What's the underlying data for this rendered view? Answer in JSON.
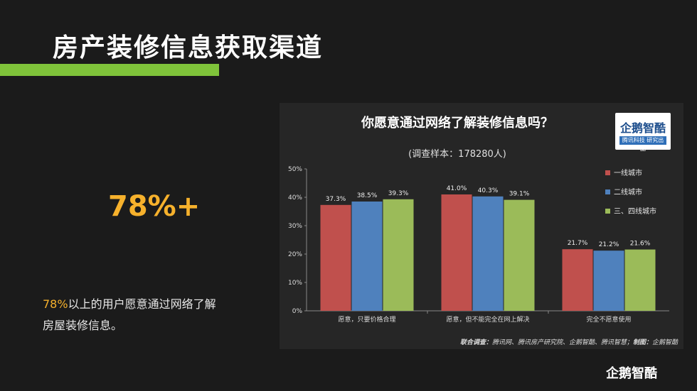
{
  "page": {
    "title": "房产装修信息获取渠道",
    "big_stat": "78%+",
    "desc_highlight": "78%",
    "desc_text": "以上的用户愿意通过网络了解房屋装修信息。",
    "footer_logo": "企鹅智酷"
  },
  "panel": {
    "logo_text": "企鹅智酷",
    "logo_sub": "腾讯科技 研究出品",
    "source_label": "联合调查：",
    "source_text": "腾讯网、腾讯房产研究院、企鹅智酷、腾讯智慧；",
    "source_label2": "制图：",
    "source_text2": "企鹅智酷"
  },
  "chart_data": {
    "type": "bar",
    "title": "你愿意通过网络了解装修信息吗？",
    "subtitle": "(调查样本：178280人)",
    "categories": [
      "愿意，只要价格合理",
      "愿意，但不能完全在网上解决",
      "完全不愿意使用"
    ],
    "series": [
      {
        "name": "一线城市",
        "color": "#c0504d",
        "values": [
          37.3,
          41.0,
          21.7
        ]
      },
      {
        "name": "二线城市",
        "color": "#4f81bd",
        "values": [
          38.5,
          40.3,
          21.2
        ]
      },
      {
        "name": "三、四线城市",
        "color": "#9bbb59",
        "values": [
          39.3,
          39.1,
          21.6
        ]
      }
    ],
    "data_labels": [
      [
        "37.3%",
        "41.0%",
        "21.7%"
      ],
      [
        "38.5%",
        "40.3%",
        "21.2%"
      ],
      [
        "39.3%",
        "39.1%",
        "21.6%"
      ]
    ],
    "ylim": [
      0,
      50
    ],
    "yticks": [
      "0%",
      "10%",
      "20%",
      "30%",
      "40%",
      "50%"
    ],
    "ytick_values": [
      0,
      10,
      20,
      30,
      40,
      50
    ],
    "grid": false,
    "legend_position": "top-right"
  }
}
